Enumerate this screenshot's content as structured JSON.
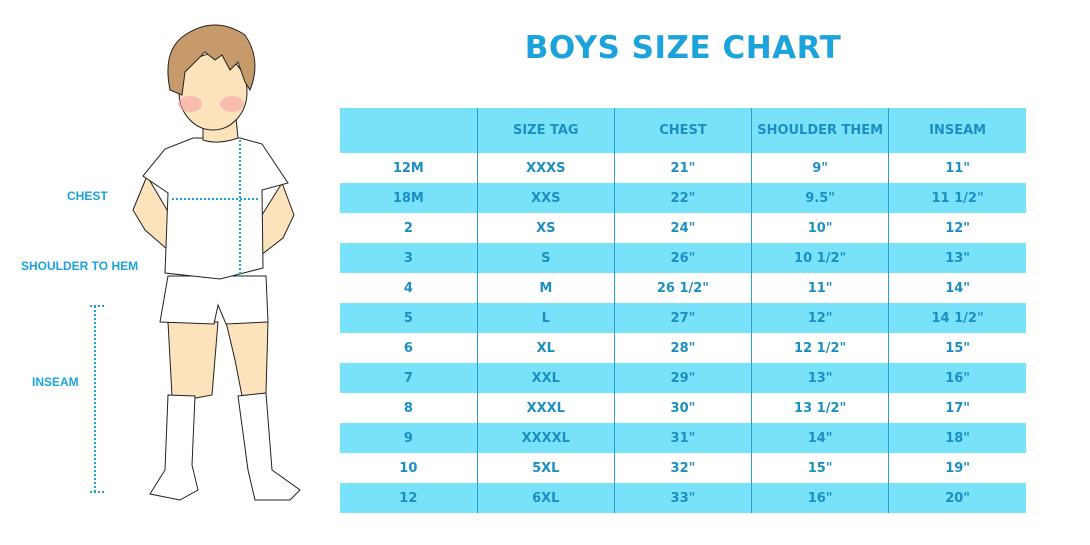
{
  "title": "BOYS SIZE CHART",
  "figure_labels": {
    "chest": "CHEST",
    "shoulder_to_hem": "SHOULDER TO HEM",
    "inseam": "INSEAM"
  },
  "colors": {
    "title": "#1ca3dc",
    "row_highlight": "#78e2fb",
    "text": "#1c8fc2"
  },
  "table": {
    "headers": [
      "",
      "SIZE TAG",
      "CHEST",
      "SHOULDER THEM",
      "INSEAM"
    ],
    "rows": [
      [
        "12M",
        "XXXS",
        "21\"",
        "9\"",
        "11\""
      ],
      [
        "18M",
        "XXS",
        "22\"",
        "9.5\"",
        "11 1/2\""
      ],
      [
        "2",
        "XS",
        "24\"",
        "10\"",
        "12\""
      ],
      [
        "3",
        "S",
        "26\"",
        "10 1/2\"",
        "13\""
      ],
      [
        "4",
        "M",
        "26 1/2\"",
        "11\"",
        "14\""
      ],
      [
        "5",
        "L",
        "27\"",
        "12\"",
        "14 1/2\""
      ],
      [
        "6",
        "XL",
        "28\"",
        "12 1/2\"",
        "15\""
      ],
      [
        "7",
        "XXL",
        "29\"",
        "13\"",
        "16\""
      ],
      [
        "8",
        "XXXL",
        "30\"",
        "13 1/2\"",
        "17\""
      ],
      [
        "9",
        "XXXXL",
        "31\"",
        "14\"",
        "18\""
      ],
      [
        "10",
        "5XL",
        "32\"",
        "15\"",
        "19\""
      ],
      [
        "12",
        "6XL",
        "33\"",
        "16\"",
        "20\""
      ]
    ]
  }
}
